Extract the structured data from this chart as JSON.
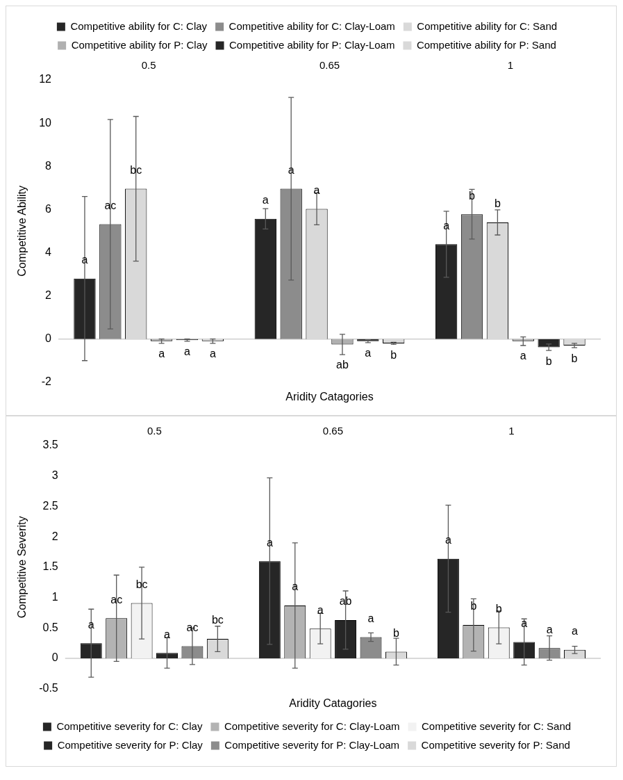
{
  "chart_data": [
    {
      "type": "bar",
      "xlabel": "Aridity Catagories",
      "ylabel": "Competitive Ability",
      "categories": [
        "0.5",
        "0.65",
        "1"
      ],
      "ylim": [
        -2,
        12
      ],
      "yticks": [
        -2,
        0,
        2,
        4,
        6,
        8,
        10,
        12
      ],
      "grid": false,
      "ref_lines": [
        {
          "axis": "y",
          "value": 0,
          "color": "#d9d9d9"
        }
      ],
      "legend": "top",
      "series": [
        {
          "name": "Competitive ability for C: Clay",
          "color": "#262626",
          "values": [
            2.8,
            5.57,
            4.39
          ],
          "errors": [
            3.8,
            0.47,
            1.53
          ],
          "value_labels": [
            "a",
            "a",
            "a"
          ]
        },
        {
          "name": "Competitive ability for C: Clay-Loam",
          "color": "#8c8c8c",
          "values": [
            5.32,
            6.96,
            5.78
          ],
          "errors": [
            4.85,
            4.23,
            1.15
          ],
          "value_labels": [
            "ac",
            "a",
            "b"
          ]
        },
        {
          "name": "Competitive ability for C: Sand",
          "color": "#d9d9d9",
          "values": [
            6.96,
            6.03,
            5.4
          ],
          "errors": [
            3.35,
            0.74,
            0.58
          ],
          "value_labels": [
            "bc",
            "a",
            "b"
          ]
        },
        {
          "name": "Competitive ability for P: Clay",
          "color": "#b0b0b0",
          "values": [
            -0.1,
            -0.25,
            -0.1
          ],
          "errors": [
            0.1,
            0.47,
            0.2
          ],
          "value_labels": [
            "a",
            "ab",
            "a"
          ]
        },
        {
          "name": "Competitive ability for P: Clay-Loam",
          "color": "#262626",
          "values": [
            -0.05,
            -0.1,
            -0.38
          ],
          "errors": [
            0.05,
            0.07,
            0.15
          ],
          "value_labels": [
            "a",
            "a",
            "b"
          ]
        },
        {
          "name": "Competitive ability for P: Sand",
          "color": "#d9d9d9",
          "values": [
            -0.1,
            -0.2,
            -0.3
          ],
          "errors": [
            0.1,
            0.05,
            0.1
          ],
          "value_labels": [
            "a",
            "b",
            "b"
          ]
        }
      ]
    },
    {
      "type": "bar",
      "xlabel": "Aridity Catagories",
      "ylabel": "Competitive Severity",
      "categories": [
        "0.5",
        "0.65",
        "1"
      ],
      "ylim": [
        -0.5,
        3.5
      ],
      "yticks": [
        -0.5,
        0,
        0.5,
        1,
        1.5,
        2,
        2.5,
        3,
        3.5
      ],
      "grid": false,
      "ref_lines": [
        {
          "axis": "y",
          "value": 0,
          "color": "#d9d9d9"
        }
      ],
      "legend": "bottom",
      "series": [
        {
          "name": "Competitive severity for C: Clay",
          "color": "#262626",
          "values": [
            0.25,
            1.6,
            1.64
          ],
          "errors": [
            0.56,
            1.37,
            0.88
          ],
          "value_labels": [
            "a",
            "a",
            "a"
          ]
        },
        {
          "name": "Competitive severity for C: Clay-Loam",
          "color": "#b3b3b3",
          "values": [
            0.66,
            0.87,
            0.55
          ],
          "errors": [
            0.71,
            1.03,
            0.43
          ],
          "value_labels": [
            "ac",
            "a",
            "b"
          ]
        },
        {
          "name": "Competitive severity for C: Sand",
          "color": "#f2f2f2",
          "values": [
            0.91,
            0.49,
            0.51
          ],
          "errors": [
            0.59,
            0.25,
            0.27
          ],
          "value_labels": [
            "bc",
            "a",
            "b"
          ]
        },
        {
          "name": "Competitive severity for P: Clay",
          "color": "#262626",
          "values": [
            0.09,
            0.63,
            0.27
          ],
          "errors": [
            0.25,
            0.48,
            0.38
          ],
          "value_labels": [
            "a",
            "ab",
            "a"
          ]
        },
        {
          "name": "Competitive severity for P: Clay-Loam",
          "color": "#8c8c8c",
          "values": [
            0.2,
            0.35,
            0.17
          ],
          "errors": [
            0.3,
            0.07,
            0.2
          ],
          "value_labels": [
            "ac",
            "a",
            "a"
          ]
        },
        {
          "name": "Competitive severity for P: Sand",
          "color": "#d9d9d9",
          "values": [
            0.32,
            0.11,
            0.14
          ],
          "errors": [
            0.21,
            0.22,
            0.06
          ],
          "value_labels": [
            "bc",
            "b",
            "a"
          ]
        }
      ]
    }
  ]
}
